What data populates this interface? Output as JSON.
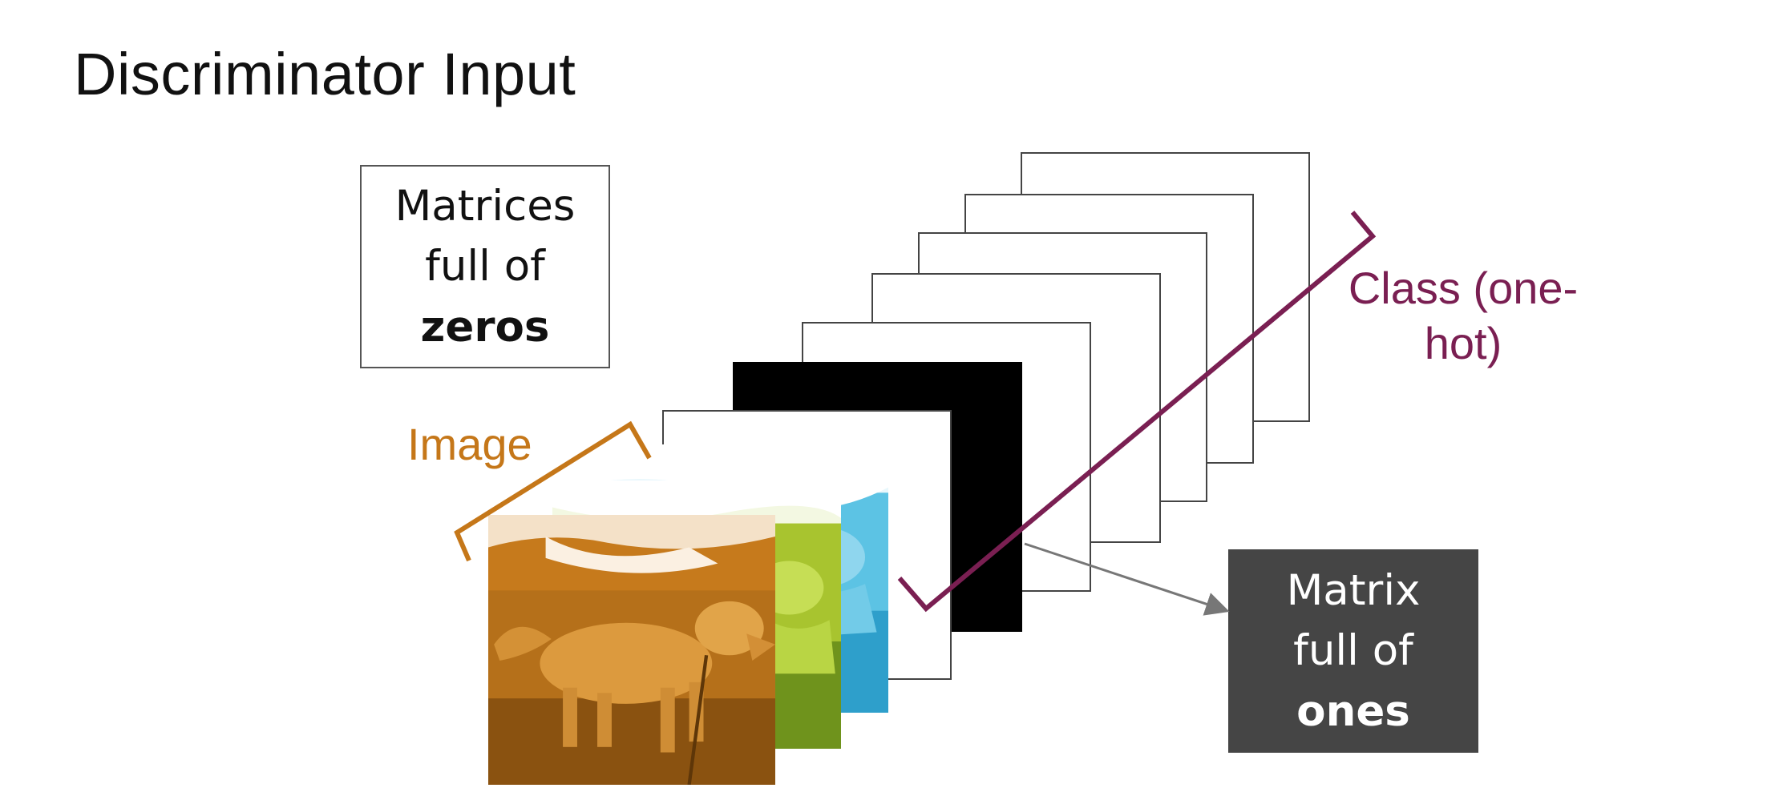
{
  "slide": {
    "title": "Discriminator Input"
  },
  "zeros_box": {
    "line1": "Matrices",
    "line2": "full of",
    "line3": "zeros"
  },
  "ones_box": {
    "line1": "Matrix",
    "line2": "full of",
    "line3": "ones"
  },
  "image_label": "Image",
  "class_label": "Class (one-hot)",
  "colors": {
    "image_channel_orange": "#c97a1e",
    "image_channel_green": "#9fc12a",
    "image_channel_blue": "#33aed8",
    "image_bracket": "#c57719",
    "class_bracket": "#7a1f52",
    "ones_box_bg": "#454545",
    "arrow": "#777777"
  }
}
